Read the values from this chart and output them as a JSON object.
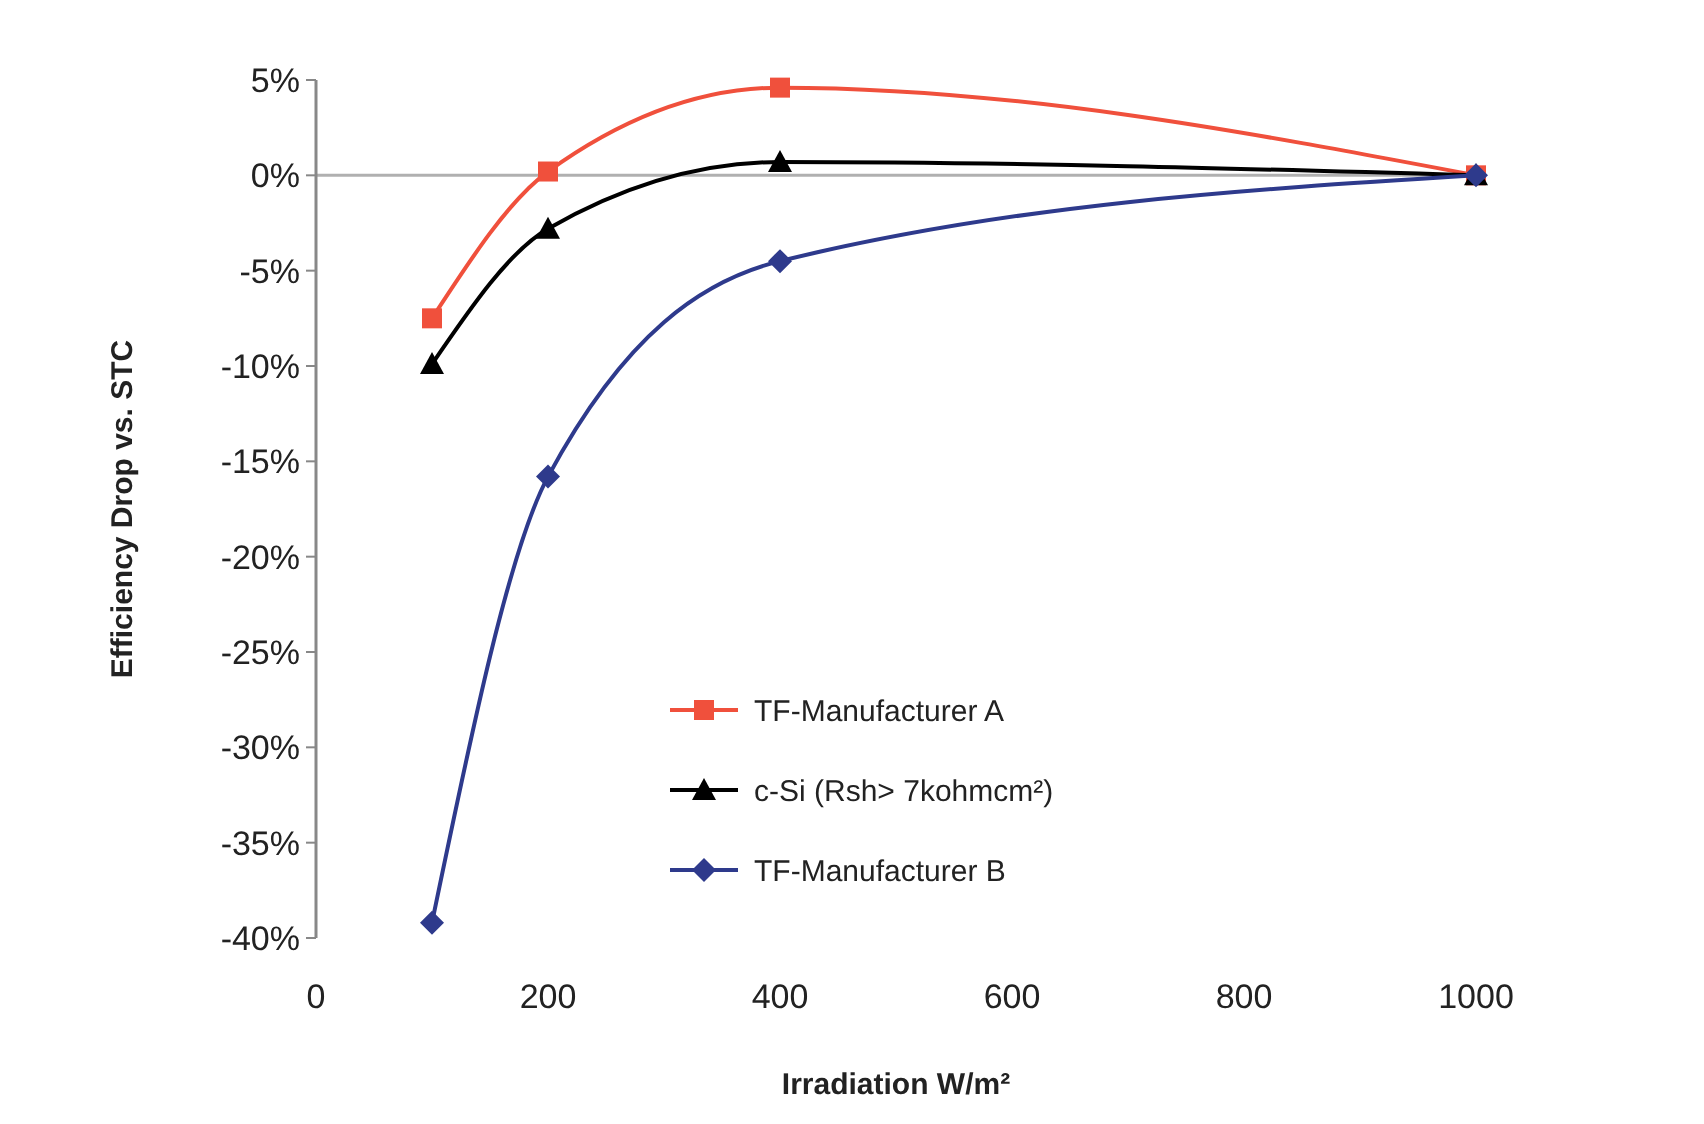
{
  "chart_data": {
    "type": "line",
    "xlabel": "Irradiation W/m²",
    "ylabel": "Efficiency Drop vs. STC",
    "x": [
      100,
      200,
      400,
      1000
    ],
    "xlim": [
      0,
      1000
    ],
    "xticks": [
      0,
      200,
      400,
      600,
      800,
      1000
    ],
    "ylim": [
      -40,
      5
    ],
    "yticks": [
      {
        "value": 5,
        "label": "5%"
      },
      {
        "value": 0,
        "label": "0%"
      },
      {
        "value": -5,
        "label": "-5%"
      },
      {
        "value": -10,
        "label": "-10%"
      },
      {
        "value": -15,
        "label": "-15%"
      },
      {
        "value": -20,
        "label": "-20%"
      },
      {
        "value": -25,
        "label": "-25%"
      },
      {
        "value": -30,
        "label": "-30%"
      },
      {
        "value": -35,
        "label": "-35%"
      },
      {
        "value": -40,
        "label": "-40%"
      }
    ],
    "grid": false,
    "legend": "center",
    "ref_lines": [
      {
        "axis": "y",
        "value": 0,
        "color": "#b0b0b0"
      }
    ],
    "series": [
      {
        "name": "TF-Manufacturer A",
        "color": "#f0503c",
        "marker": "square",
        "values": [
          -7.5,
          0.2,
          4.6,
          0
        ]
      },
      {
        "name": "c-Si (Rsh> 7kohmcm²)",
        "color": "#000000",
        "marker": "triangle",
        "values": [
          -9.9,
          -2.8,
          0.7,
          0
        ]
      },
      {
        "name": "TF-Manufacturer B",
        "color": "#2e3a8c",
        "marker": "diamond",
        "values": [
          -39.2,
          -15.8,
          -4.5,
          0
        ]
      }
    ]
  }
}
